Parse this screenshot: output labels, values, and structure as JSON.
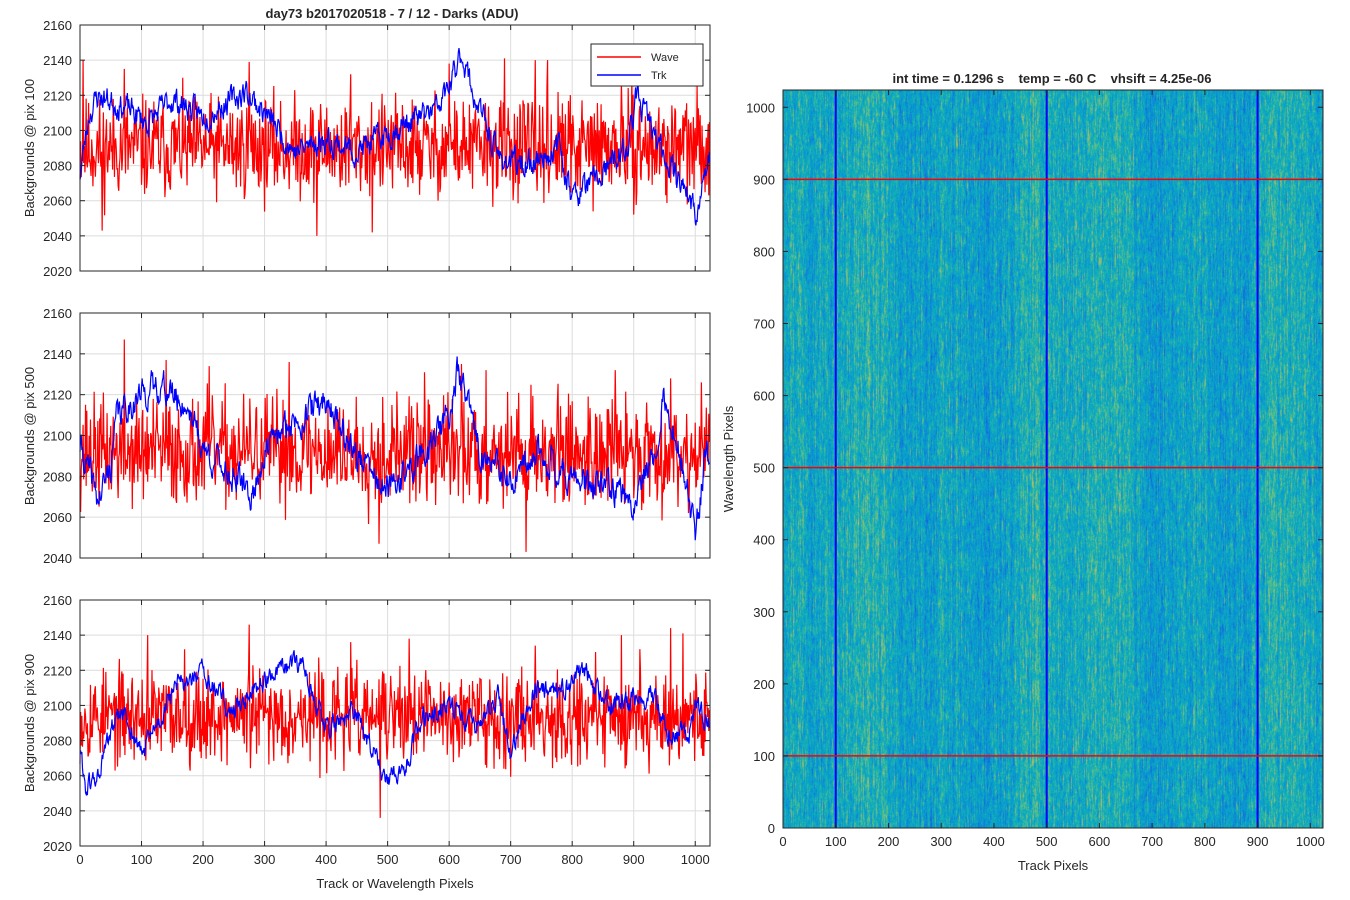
{
  "figure_title": "day73 b2017020518 - 7 / 12 - Darks (ADU)",
  "colors": {
    "wave": "#ff0000",
    "trk": "#0000ff",
    "axis": "#262626",
    "grid": "#dcdcdc"
  },
  "chart_data": [
    {
      "type": "line",
      "title": "day73 b2017020518 - 7 / 12 - Darks (ADU)",
      "xlabel": "",
      "ylabel": "Backgrounds @ pix 100",
      "xlim": [
        0,
        1024
      ],
      "ylim": [
        2020,
        2160
      ],
      "xticks": [
        0,
        100,
        200,
        300,
        400,
        500,
        600,
        700,
        800,
        900,
        1000
      ],
      "yticks": [
        2020,
        2040,
        2060,
        2080,
        2100,
        2120,
        2140,
        2160
      ],
      "grid": true,
      "legend": {
        "position": "top-right",
        "entries": [
          "Wave",
          "Trk"
        ]
      },
      "series": [
        {
          "name": "Wave",
          "color": "#ff0000",
          "mean": 2090,
          "noise": 14,
          "seed": 11,
          "spikes": [
            [
              5,
              2140
            ],
            [
              36,
              2043
            ],
            [
              72,
              2135
            ],
            [
              275,
              2139
            ],
            [
              385,
              2040
            ],
            [
              440,
              2132
            ],
            [
              475,
              2042
            ],
            [
              600,
              2138
            ],
            [
              690,
              2141
            ],
            [
              740,
              2140
            ],
            [
              760,
              2140
            ],
            [
              880,
              2128
            ]
          ]
        },
        {
          "name": "Trk",
          "color": "#0000ff",
          "mean": 2098,
          "noise": 6,
          "seed": 23,
          "anchors": [
            [
              0,
              2075
            ],
            [
              15,
              2110
            ],
            [
              30,
              2120
            ],
            [
              80,
              2112
            ],
            [
              110,
              2104
            ],
            [
              150,
              2118
            ],
            [
              200,
              2108
            ],
            [
              270,
              2122
            ],
            [
              300,
              2110
            ],
            [
              350,
              2088
            ],
            [
              400,
              2095
            ],
            [
              450,
              2088
            ],
            [
              530,
              2104
            ],
            [
              580,
              2112
            ],
            [
              605,
              2128
            ],
            [
              620,
              2145
            ],
            [
              640,
              2120
            ],
            [
              680,
              2085
            ],
            [
              720,
              2080
            ],
            [
              780,
              2090
            ],
            [
              800,
              2062
            ],
            [
              850,
              2075
            ],
            [
              890,
              2090
            ],
            [
              905,
              2120
            ],
            [
              940,
              2092
            ],
            [
              980,
              2070
            ],
            [
              1000,
              2052
            ],
            [
              1024,
              2085
            ]
          ]
        }
      ]
    },
    {
      "type": "line",
      "title": "",
      "xlabel": "",
      "ylabel": "Backgrounds @ pix 500",
      "xlim": [
        0,
        1024
      ],
      "ylim": [
        2040,
        2160
      ],
      "xticks": [
        0,
        100,
        200,
        300,
        400,
        500,
        600,
        700,
        800,
        900,
        1000
      ],
      "yticks": [
        2040,
        2060,
        2080,
        2100,
        2120,
        2140,
        2160
      ],
      "grid": true,
      "series": [
        {
          "name": "Wave",
          "color": "#ff0000",
          "mean": 2092,
          "noise": 13,
          "seed": 37,
          "spikes": [
            [
              72,
              2147
            ],
            [
              140,
              2137
            ],
            [
              210,
              2134
            ],
            [
              340,
              2136
            ],
            [
              486,
              2047
            ],
            [
              560,
              2131
            ],
            [
              620,
              2135
            ],
            [
              660,
              2132
            ],
            [
              725,
              2043
            ],
            [
              870,
              2132
            ],
            [
              960,
              2128
            ],
            [
              1010,
              2126
            ]
          ]
        },
        {
          "name": "Trk",
          "color": "#0000ff",
          "mean": 2094,
          "noise": 6,
          "seed": 41,
          "anchors": [
            [
              0,
              2095
            ],
            [
              30,
              2068
            ],
            [
              50,
              2085
            ],
            [
              60,
              2110
            ],
            [
              100,
              2120
            ],
            [
              130,
              2125
            ],
            [
              180,
              2112
            ],
            [
              200,
              2093
            ],
            [
              250,
              2080
            ],
            [
              280,
              2070
            ],
            [
              300,
              2092
            ],
            [
              340,
              2105
            ],
            [
              400,
              2118
            ],
            [
              450,
              2090
            ],
            [
              500,
              2072
            ],
            [
              550,
              2088
            ],
            [
              600,
              2110
            ],
            [
              615,
              2132
            ],
            [
              650,
              2092
            ],
            [
              700,
              2075
            ],
            [
              750,
              2092
            ],
            [
              800,
              2078
            ],
            [
              850,
              2075
            ],
            [
              900,
              2068
            ],
            [
              930,
              2090
            ],
            [
              950,
              2118
            ],
            [
              980,
              2085
            ],
            [
              1000,
              2050
            ],
            [
              1015,
              2085
            ],
            [
              1024,
              2092
            ]
          ]
        }
      ]
    },
    {
      "type": "line",
      "title": "",
      "xlabel": "Track or Wavelength Pixels",
      "ylabel": "Backgrounds @ pix 900",
      "xlim": [
        0,
        1024
      ],
      "ylim": [
        2020,
        2160
      ],
      "xticks": [
        0,
        100,
        200,
        300,
        400,
        500,
        600,
        700,
        800,
        900,
        1000
      ],
      "yticks": [
        2020,
        2040,
        2060,
        2080,
        2100,
        2120,
        2140,
        2160
      ],
      "grid": true,
      "series": [
        {
          "name": "Wave",
          "color": "#ff0000",
          "mean": 2094,
          "noise": 13,
          "seed": 53,
          "spikes": [
            [
              110,
              2140
            ],
            [
              170,
              2132
            ],
            [
              275,
              2146
            ],
            [
              440,
              2136
            ],
            [
              488,
              2036
            ],
            [
              535,
              2138
            ],
            [
              740,
              2134
            ],
            [
              880,
              2140
            ],
            [
              910,
              2132
            ],
            [
              960,
              2144
            ],
            [
              980,
              2141
            ]
          ]
        },
        {
          "name": "Trk",
          "color": "#0000ff",
          "mean": 2094,
          "noise": 5,
          "seed": 61,
          "anchors": [
            [
              0,
              2075
            ],
            [
              10,
              2052
            ],
            [
              30,
              2060
            ],
            [
              50,
              2085
            ],
            [
              70,
              2096
            ],
            [
              100,
              2072
            ],
            [
              130,
              2092
            ],
            [
              160,
              2112
            ],
            [
              200,
              2118
            ],
            [
              250,
              2095
            ],
            [
              280,
              2110
            ],
            [
              360,
              2125
            ],
            [
              400,
              2088
            ],
            [
              450,
              2095
            ],
            [
              500,
              2055
            ],
            [
              530,
              2068
            ],
            [
              560,
              2095
            ],
            [
              600,
              2100
            ],
            [
              650,
              2088
            ],
            [
              680,
              2105
            ],
            [
              700,
              2072
            ],
            [
              740,
              2110
            ],
            [
              780,
              2108
            ],
            [
              820,
              2120
            ],
            [
              860,
              2100
            ],
            [
              900,
              2103
            ],
            [
              930,
              2108
            ],
            [
              960,
              2082
            ],
            [
              990,
              2085
            ],
            [
              1000,
              2100
            ],
            [
              1024,
              2088
            ]
          ]
        }
      ]
    },
    {
      "type": "heatmap",
      "title": "int time = 0.1296 s    temp = -60 C    vhsift = 4.25e-06",
      "xlabel": "Track Pixels",
      "ylabel": "Wavelength Pixels",
      "xlim": [
        0,
        1024
      ],
      "ylim": [
        0,
        1024
      ],
      "xticks": [
        0,
        100,
        200,
        300,
        400,
        500,
        600,
        700,
        800,
        900,
        1000
      ],
      "yticks": [
        0,
        100,
        200,
        300,
        400,
        500,
        600,
        700,
        800,
        900,
        1000
      ],
      "colormap": "parula",
      "vertical_lines": {
        "color": "#0000ff",
        "x": [
          100,
          500,
          900
        ]
      },
      "horizontal_lines": {
        "color": "#ff0000",
        "y": [
          100,
          500,
          900
        ]
      }
    }
  ]
}
